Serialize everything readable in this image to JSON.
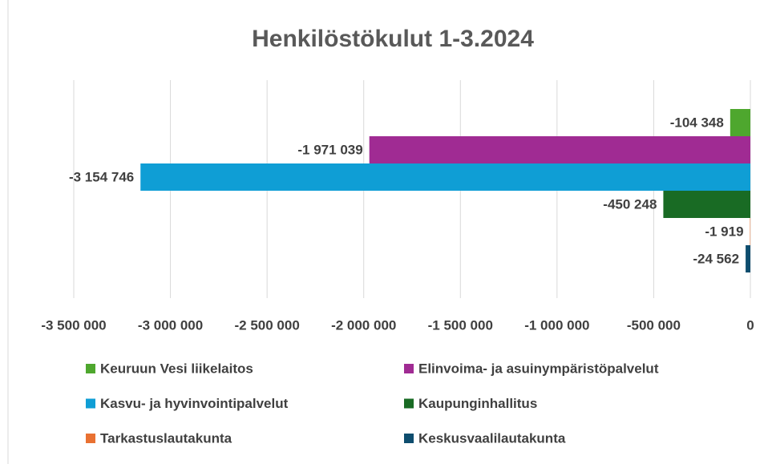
{
  "chart_data": {
    "type": "barh",
    "title": "Henkilöstökulut 1-3.2024",
    "categories": [
      null
    ],
    "series": [
      {
        "name": "Keuruun Vesi liikelaitos",
        "color": "#4ea72e",
        "values": [
          -104348
        ],
        "value_labels": [
          "-104 348"
        ]
      },
      {
        "name": "Elinvoima- ja asuinympäristöpalvelut",
        "color": "#a02b93",
        "values": [
          -1971039
        ],
        "value_labels": [
          "-1 971 039"
        ]
      },
      {
        "name": "Kasvu- ja hyvinvointipalvelut",
        "color": "#0f9ed5",
        "values": [
          -3154746
        ],
        "value_labels": [
          "-3 154 746"
        ]
      },
      {
        "name": "Kaupunginhallitus",
        "color": "#196b24",
        "values": [
          -450248
        ],
        "value_labels": [
          "-450 248"
        ]
      },
      {
        "name": "Tarkastuslautakunta",
        "color": "#e97132",
        "values": [
          -1919
        ],
        "value_labels": [
          "-1 919"
        ]
      },
      {
        "name": "Keskusvaalilautakunta",
        "color": "#0e4d6e",
        "values": [
          -24562
        ],
        "value_labels": [
          "-24 562"
        ]
      }
    ],
    "xlim": [
      -3500000,
      0
    ],
    "xticks": [
      {
        "value": -3500000,
        "label": "-3 500 000"
      },
      {
        "value": -3000000,
        "label": "-3 000 000"
      },
      {
        "value": -2500000,
        "label": "-2 500 000"
      },
      {
        "value": -2000000,
        "label": "-2 000 000"
      },
      {
        "value": -1500000,
        "label": "-1 500 000"
      },
      {
        "value": -1000000,
        "label": "-1 000 000"
      },
      {
        "value": -500000,
        "label": "-500 000"
      },
      0
    ],
    "grid": true,
    "legend": "bottom"
  }
}
